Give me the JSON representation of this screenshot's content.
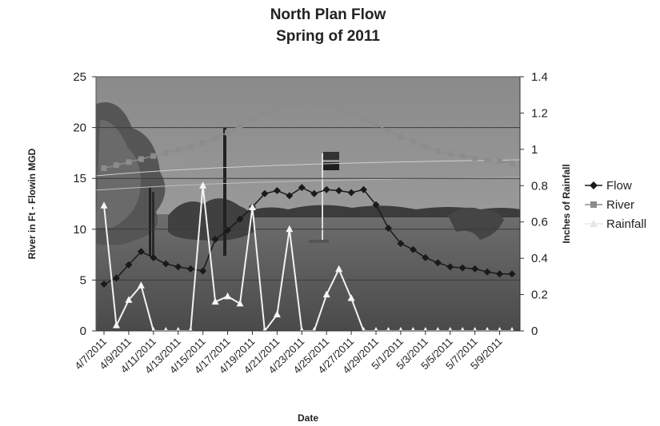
{
  "chart_data": {
    "type": "line",
    "title": "North Plan Flow",
    "subtitle": "Spring of 2011",
    "xlabel": "Date",
    "ylabel": "River in Ft - Flowin MGD",
    "y2label": "Inches of Rainfall",
    "ylim": [
      0,
      25
    ],
    "y2lim": [
      0,
      1.4
    ],
    "yticks": [
      0,
      5,
      10,
      15,
      20,
      25
    ],
    "y2ticks": [
      0,
      0.2,
      0.4,
      0.6,
      0.8,
      1,
      1.2,
      1.4
    ],
    "y2tick_labels": [
      "0",
      "0.2",
      "0.4",
      "0.6",
      "0.8",
      "1",
      "1.2",
      "1.4"
    ],
    "x": [
      "4/7/2011",
      "4/8/2011",
      "4/9/2011",
      "4/10/2011",
      "4/11/2011",
      "4/12/2011",
      "4/13/2011",
      "4/14/2011",
      "4/15/2011",
      "4/16/2011",
      "4/17/2011",
      "4/18/2011",
      "4/19/2011",
      "4/20/2011",
      "4/21/2011",
      "4/22/2011",
      "4/23/2011",
      "4/24/2011",
      "4/25/2011",
      "4/26/2011",
      "4/27/2011",
      "4/28/2011",
      "4/29/2011",
      "4/30/2011",
      "5/1/2011",
      "5/2/2011",
      "5/3/2011",
      "5/4/2011",
      "5/5/2011",
      "5/6/2011",
      "5/7/2011",
      "5/8/2011",
      "5/9/2011",
      "5/10/2011"
    ],
    "xtick_labels": [
      "4/7/2011",
      "4/9/2011",
      "4/11/2011",
      "4/13/2011",
      "4/15/2011",
      "4/17/2011",
      "4/19/2011",
      "4/21/2011",
      "4/23/2011",
      "4/25/2011",
      "4/27/2011",
      "4/29/2011",
      "5/1/2011",
      "5/3/2011",
      "5/5/2011",
      "5/7/2011",
      "5/9/2011"
    ],
    "grid": true,
    "legend": "right",
    "background": "photo of flooded field with trees, poles and flag",
    "series": [
      {
        "name": "Flow",
        "axis": "left",
        "marker": "diamond",
        "color": "#1a1a1a",
        "values": [
          4.6,
          5.2,
          6.5,
          7.8,
          7.2,
          6.6,
          6.3,
          6.1,
          5.9,
          9.0,
          9.9,
          11.0,
          12.2,
          13.5,
          13.8,
          13.3,
          14.1,
          13.5,
          13.9,
          13.8,
          13.6,
          13.9,
          12.4,
          10.1,
          8.6,
          8.0,
          7.2,
          6.7,
          6.3,
          6.2,
          6.1,
          5.8,
          5.6,
          5.6
        ]
      },
      {
        "name": "River",
        "axis": "left",
        "marker": "square",
        "color": "#8c8c8c",
        "values": [
          16.0,
          16.3,
          16.6,
          16.9,
          17.2,
          17.5,
          17.8,
          18.1,
          18.5,
          19.0,
          19.5,
          20.2,
          20.8,
          21.4,
          21.9,
          22.2,
          22.4,
          22.5,
          22.3,
          21.9,
          21.4,
          20.9,
          20.3,
          19.7,
          19.1,
          18.6,
          18.1,
          17.7,
          17.4,
          17.2,
          17.0,
          16.8,
          16.7,
          16.5
        ]
      },
      {
        "name": "Rainfall",
        "axis": "right",
        "marker": "triangle",
        "color": "#ffffff",
        "values": [
          0.69,
          0.03,
          0.17,
          0.25,
          0.0,
          0.0,
          0.0,
          0.0,
          0.8,
          0.16,
          0.19,
          0.15,
          0.68,
          0.0,
          0.09,
          0.56,
          0.0,
          0.0,
          0.2,
          0.34,
          0.18,
          0.0,
          0.0,
          0.0,
          0.0,
          0.0,
          0.0,
          0.0,
          0.0,
          0.0,
          0.0,
          0.0,
          0.0,
          0.0
        ]
      }
    ]
  }
}
